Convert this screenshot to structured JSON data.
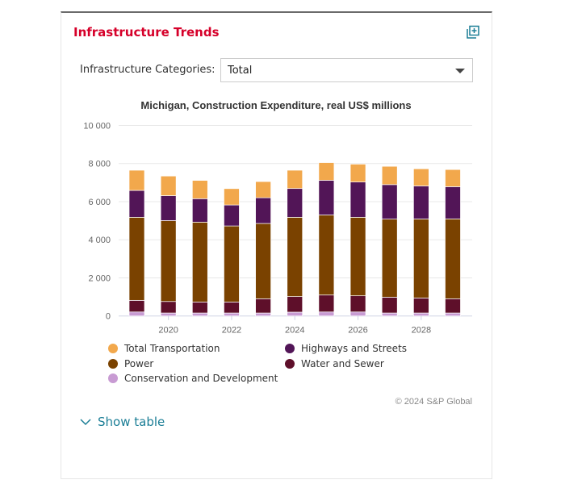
{
  "panel": {
    "title": "Infrastructure Trends",
    "expand_icon": "expand-icon"
  },
  "filter": {
    "label": "Infrastructure Categories:",
    "selected": "Total"
  },
  "chart_data": {
    "type": "stacked-bar",
    "title": "Michigan, Construction Expenditure, real US$ millions",
    "categories": [
      "2019",
      "2020",
      "2021",
      "2022",
      "2023",
      "2024",
      "2025",
      "2026",
      "2027",
      "2028",
      "2029"
    ],
    "x_tick_labels": [
      "2020",
      "2022",
      "2024",
      "2026",
      "2028"
    ],
    "y_tick_labels": [
      "0",
      "2 000",
      "4 000",
      "6 000",
      "8 000",
      "10 000"
    ],
    "ylim": [
      0,
      10000
    ],
    "grid": true,
    "legend_position": "bottom",
    "series": [
      {
        "name": "Conservation and Development",
        "color": "#c89bd3",
        "values": [
          210,
          155,
          155,
          155,
          155,
          200,
          210,
          210,
          155,
          155,
          155
        ]
      },
      {
        "name": "Water and Sewer",
        "color": "#5e0f2a",
        "values": [
          610,
          605,
          580,
          580,
          750,
          820,
          890,
          850,
          830,
          790,
          750
        ]
      },
      {
        "name": "Power",
        "color": "#7a4200",
        "values": [
          4360,
          4245,
          4190,
          3990,
          3950,
          4160,
          4200,
          4120,
          4100,
          4145,
          4190
        ]
      },
      {
        "name": "Highways and Streets",
        "color": "#521557",
        "values": [
          1410,
          1310,
          1230,
          1100,
          1350,
          1510,
          1820,
          1850,
          1810,
          1735,
          1690
        ]
      },
      {
        "name": "Total Transportation",
        "color": "#f2a84c",
        "values": [
          1060,
          1030,
          960,
          860,
          850,
          960,
          930,
          940,
          960,
          900,
          900
        ]
      }
    ],
    "credit": "© 2024 S&P Global"
  },
  "footer": {
    "show_table": "Show table"
  }
}
